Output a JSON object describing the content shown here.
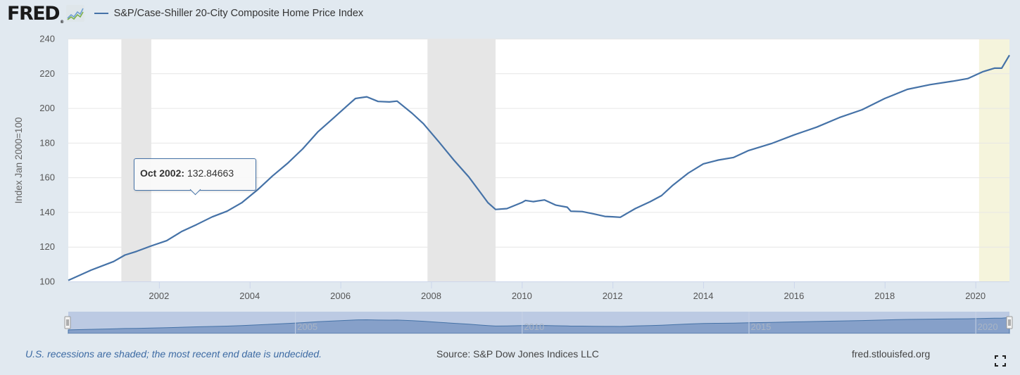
{
  "header": {
    "logo_text": "FRED",
    "logo_reg": "®",
    "legend_label": "S&P/Case-Shiller 20-City Composite Home Price Index"
  },
  "tooltip": {
    "date": "Oct 2002:",
    "value": "132.84663"
  },
  "footer": {
    "note": "U.S. recessions are shaded; the most recent end date is undecided.",
    "source": "Source: S&P Dow Jones Indices LLC",
    "site": "fred.stlouisfed.org"
  },
  "colors": {
    "series": "#4572a7",
    "recession": "#e6e6e6",
    "recent_recession": "#f5f4dc",
    "background": "#e1e9f0",
    "navigator_fill": "#86a0c9",
    "navigator_bg": "#bccae3"
  },
  "chart_data": {
    "type": "line",
    "title": "S&P/Case-Shiller 20-City Composite Home Price Index",
    "xlabel": "",
    "ylabel": "Index Jan 2000=100",
    "ylim": [
      100,
      240
    ],
    "xlim": [
      2000.0,
      2020.75
    ],
    "yticks": [
      "100",
      "120",
      "140",
      "160",
      "180",
      "200",
      "220",
      "240"
    ],
    "xticks": [
      "2002",
      "2004",
      "2006",
      "2008",
      "2010",
      "2012",
      "2014",
      "2016",
      "2018",
      "2020"
    ],
    "navigator_labels": [
      "2005",
      "2010",
      "2015",
      "2020"
    ],
    "grid": true,
    "legend": "top-left",
    "recessions": [
      {
        "start": 2001.17,
        "end": 2001.83,
        "label": "2001 recession"
      },
      {
        "start": 2007.92,
        "end": 2009.42,
        "label": "2008 recession"
      },
      {
        "start": 2020.08,
        "end": 2020.75,
        "label": "2020 recession (undecided)"
      }
    ],
    "series": [
      {
        "name": "S&P/Case-Shiller 20-City Composite Home Price Index",
        "x": [
          2000.0,
          2000.5,
          2001.0,
          2001.25,
          2001.5,
          2001.83,
          2002.17,
          2002.5,
          2002.83,
          2003.17,
          2003.5,
          2003.83,
          2004.17,
          2004.5,
          2004.83,
          2005.17,
          2005.5,
          2005.83,
          2006.17,
          2006.33,
          2006.58,
          2006.83,
          2007.08,
          2007.25,
          2007.58,
          2007.83,
          2008.17,
          2008.5,
          2008.83,
          2009.08,
          2009.25,
          2009.42,
          2009.67,
          2010.0,
          2010.08,
          2010.25,
          2010.5,
          2010.75,
          2011.0,
          2011.08,
          2011.33,
          2011.58,
          2011.83,
          2012.0,
          2012.17,
          2012.5,
          2012.83,
          2013.08,
          2013.33,
          2013.67,
          2014.0,
          2014.33,
          2014.67,
          2015.0,
          2015.5,
          2016.0,
          2016.5,
          2017.0,
          2017.5,
          2018.0,
          2018.5,
          2019.0,
          2019.5,
          2019.83,
          2020.17,
          2020.42,
          2020.58,
          2020.75
        ],
        "values": [
          100.6,
          106.5,
          111.5,
          115.2,
          117.3,
          120.5,
          123.5,
          128.8,
          132.8,
          137.2,
          140.5,
          145.5,
          152.8,
          160.8,
          168.0,
          176.5,
          186.2,
          193.8,
          201.8,
          205.5,
          206.5,
          203.8,
          203.5,
          204.0,
          197.0,
          191.0,
          180.5,
          170.0,
          160.3,
          151.5,
          145.5,
          141.5,
          142.0,
          145.5,
          146.7,
          146.0,
          147.0,
          144.0,
          142.8,
          140.5,
          140.3,
          139.0,
          137.5,
          137.3,
          137.0,
          142.0,
          146.0,
          149.5,
          155.5,
          162.5,
          167.8,
          170.0,
          171.5,
          175.5,
          179.5,
          184.5,
          189.0,
          194.5,
          199.0,
          205.5,
          210.8,
          213.5,
          215.5,
          217.0,
          221.0,
          223.0,
          223.0,
          230.5
        ]
      }
    ]
  }
}
